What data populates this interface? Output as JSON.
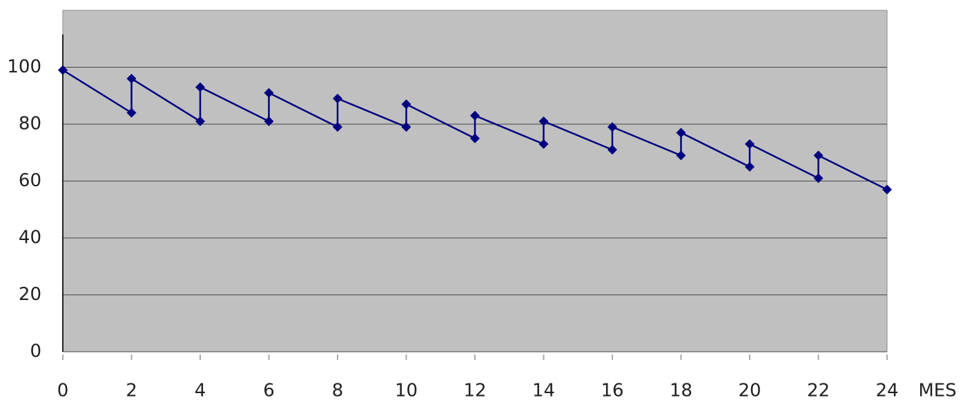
{
  "chart_data": {
    "type": "line",
    "x_label": "MES",
    "x": [
      0,
      2,
      2,
      4,
      4,
      6,
      6,
      8,
      8,
      10,
      10,
      12,
      12,
      14,
      14,
      16,
      16,
      18,
      18,
      20,
      20,
      22,
      22,
      24
    ],
    "series": [
      {
        "color": "#000080",
        "values": [
          99,
          84,
          96,
          81,
          93,
          81,
          91,
          79,
          89,
          79,
          87,
          75,
          83,
          73,
          81,
          71,
          79,
          69,
          77,
          65,
          73,
          61,
          69,
          57
        ]
      }
    ],
    "xlim": [
      0,
      24
    ],
    "xticks": [
      0,
      2,
      4,
      6,
      8,
      10,
      12,
      14,
      16,
      18,
      20,
      22,
      24
    ],
    "ylim": [
      0,
      120
    ],
    "yticks": [
      0,
      20,
      40,
      60,
      80,
      100
    ],
    "grid": true,
    "background": "#c0c0c0"
  }
}
